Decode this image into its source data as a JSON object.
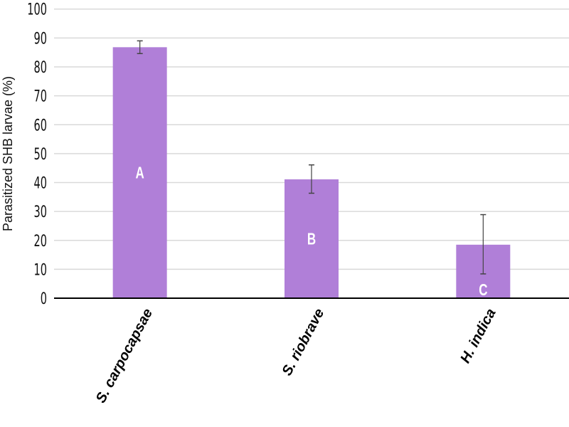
{
  "chart_data": {
    "type": "bar",
    "title": "",
    "xlabel": "",
    "ylabel": "Parasitized SHB larvae (%)",
    "ylim": [
      0,
      100
    ],
    "yticks": [
      0,
      10,
      20,
      30,
      40,
      50,
      60,
      70,
      80,
      90,
      100
    ],
    "grid": true,
    "categories": [
      "S. carpocapsae",
      "S. riobrave",
      "H. indica"
    ],
    "values": [
      86.8,
      41.1,
      18.5
    ],
    "error_upper": [
      89.0,
      46.1,
      28.9
    ],
    "error_lower": [
      84.6,
      36.3,
      8.4
    ],
    "significance_letters": [
      "A",
      "B",
      "C"
    ],
    "bar_color": "#b07fd8",
    "grid_color": "#d9d9d9"
  }
}
